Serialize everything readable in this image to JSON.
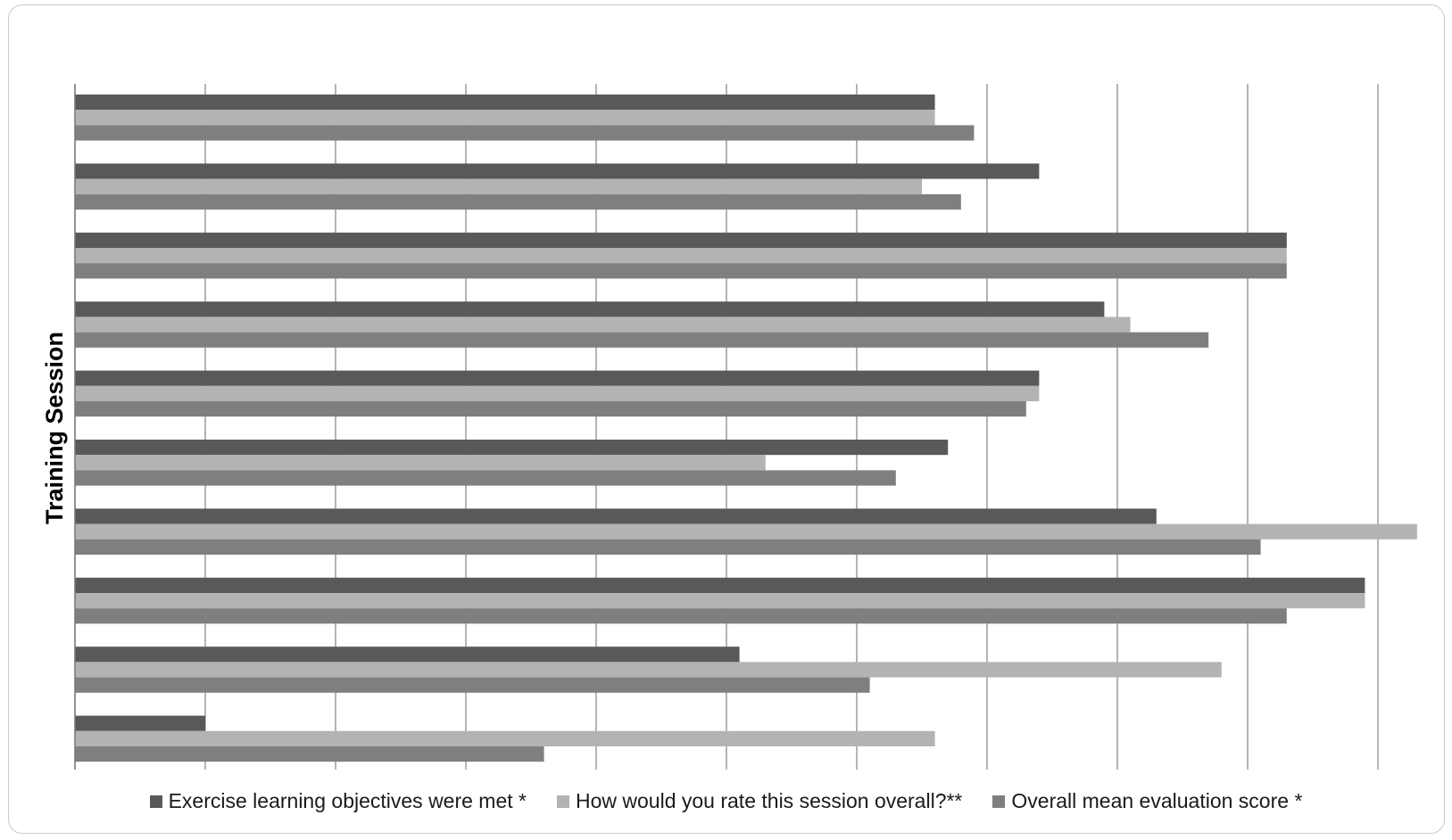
{
  "chart_data": {
    "type": "bar",
    "orientation": "horizontal",
    "title": "",
    "ylabel": "Training Session",
    "xlabel": "",
    "xlim": [
      0,
      1
    ],
    "grid": true,
    "legend_position": "bottom",
    "categories": [
      "",
      "",
      "",
      "",
      "",
      "",
      "",
      "",
      "",
      ""
    ],
    "series": [
      {
        "name": "Exercise learning objectives were met *",
        "color": "#595959",
        "values": [
          0.66,
          0.74,
          0.93,
          0.79,
          0.74,
          0.67,
          0.83,
          0.99,
          0.51,
          0.1
        ]
      },
      {
        "name": "How would you rate this session overall?**",
        "color": "#b3b3b3",
        "values": [
          0.66,
          0.65,
          0.93,
          0.81,
          0.74,
          0.53,
          1.03,
          0.99,
          0.88,
          0.66
        ]
      },
      {
        "name": "Overall mean evaluation score *",
        "color": "#7f7f7f",
        "values": [
          0.69,
          0.68,
          0.93,
          0.87,
          0.73,
          0.63,
          0.91,
          0.93,
          0.61,
          0.36
        ]
      }
    ]
  }
}
